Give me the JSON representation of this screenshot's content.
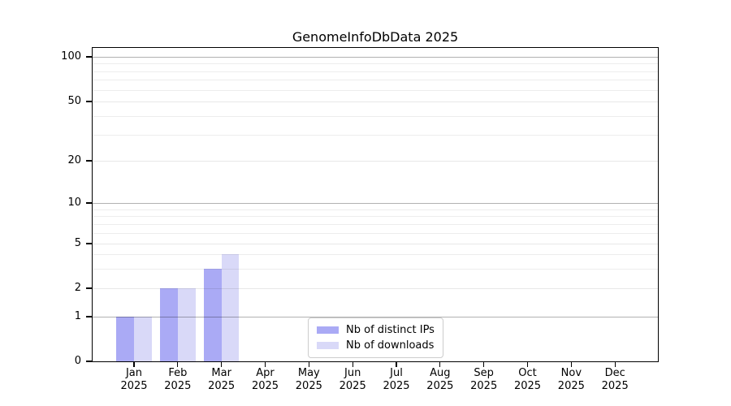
{
  "chart_data": {
    "type": "bar",
    "title": "GenomeInfoDbData 2025",
    "months": [
      "Jan",
      "Feb",
      "Mar",
      "Apr",
      "May",
      "Jun",
      "Jul",
      "Aug",
      "Sep",
      "Oct",
      "Nov",
      "Dec"
    ],
    "year": "2025",
    "series": [
      {
        "name": "Nb of distinct IPs",
        "color": "#aaaaf5",
        "values": [
          1,
          2,
          3,
          0,
          0,
          0,
          0,
          0,
          0,
          0,
          0,
          0
        ]
      },
      {
        "name": "Nb of downloads",
        "color": "#d9d9f8",
        "values": [
          1,
          2,
          4,
          0,
          0,
          0,
          0,
          0,
          0,
          0,
          0,
          0
        ]
      }
    ],
    "y_scale": "symlog",
    "ylim": [
      0,
      120
    ],
    "y_major_ticks": [
      0,
      1,
      2,
      5,
      10,
      20,
      50,
      100
    ],
    "y_minor_gridlines": [
      3,
      4,
      6,
      7,
      8,
      9,
      30,
      40,
      60,
      70,
      80,
      90
    ],
    "decade_gridlines": [
      1,
      10,
      100
    ],
    "grid": true,
    "legend_position": "lower center"
  }
}
